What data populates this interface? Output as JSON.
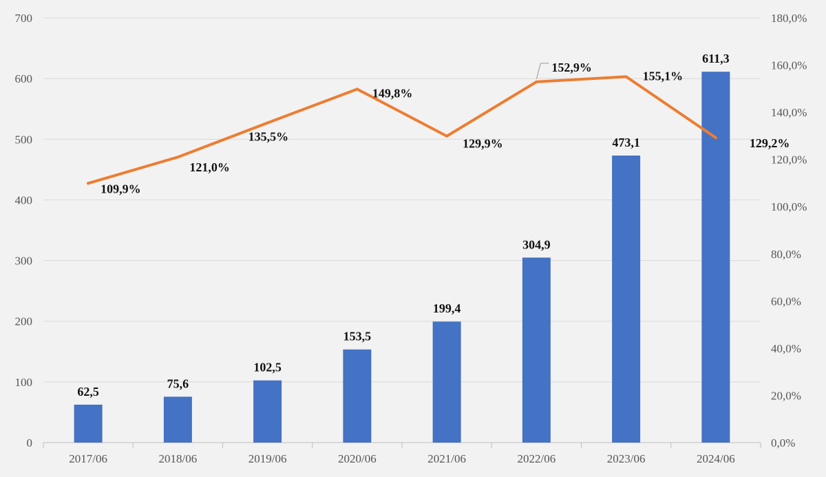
{
  "chart_data": {
    "type": "bar",
    "categories": [
      "2017/06",
      "2018/06",
      "2019/06",
      "2020/06",
      "2021/06",
      "2022/06",
      "2023/06",
      "2024/06"
    ],
    "series": [
      {
        "type": "bar",
        "axis": "left",
        "values": [
          62.5,
          75.6,
          102.5,
          153.5,
          199.4,
          304.9,
          473.1,
          611.3
        ],
        "labels": [
          "62,5",
          "75,6",
          "102,5",
          "153,5",
          "199,4",
          "304,9",
          "473,1",
          "611,3"
        ],
        "color": "#4472c4"
      },
      {
        "type": "line",
        "axis": "right",
        "values": [
          109.9,
          121.0,
          135.5,
          149.8,
          129.9,
          152.9,
          155.1,
          129.2
        ],
        "labels": [
          "109,9%",
          "121,0%",
          "135,5%",
          "149,8%",
          "129,9%",
          "152,9%",
          "155,1%",
          "129,2%"
        ],
        "color": "#ed7d31"
      }
    ],
    "y_left": {
      "range": [
        0,
        700
      ],
      "ticks": [
        0,
        100,
        200,
        300,
        400,
        500,
        600,
        700
      ],
      "tick_labels": [
        "0",
        "100",
        "200",
        "300",
        "400",
        "500",
        "600",
        "700"
      ]
    },
    "y_right": {
      "range": [
        0,
        180
      ],
      "ticks": [
        0,
        20,
        40,
        60,
        80,
        100,
        120,
        140,
        160,
        180
      ],
      "tick_labels": [
        "0,0%",
        "20,0%",
        "40,0%",
        "60,0%",
        "80,0%",
        "100,0%",
        "120,0%",
        "140,0%",
        "160,0%",
        "180,0%"
      ]
    },
    "grid": true,
    "legend": "none",
    "colors": {
      "background": "#f2f2f2",
      "grid": "#d9d9d9",
      "axis": "#bfbfbf"
    }
  }
}
